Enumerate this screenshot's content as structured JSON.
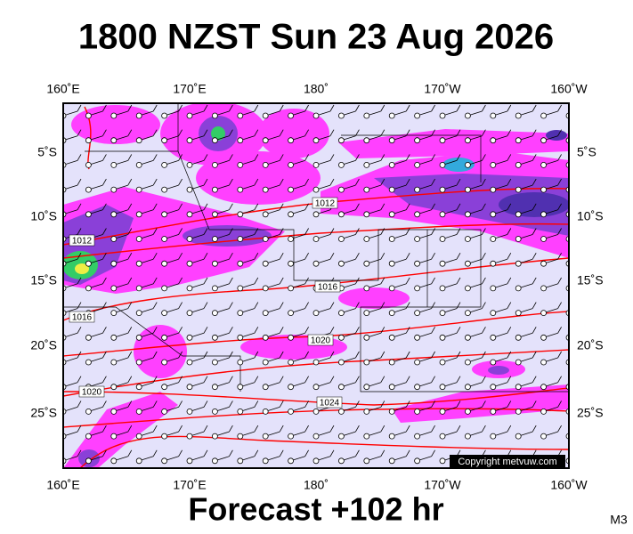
{
  "title": "1800 NZST Sun 23 Aug 2026",
  "lon_labels": [
    "160˚E",
    "170˚E",
    "180˚",
    "170˚W",
    "160˚W"
  ],
  "lat_labels": [
    "5˚S",
    "10˚S",
    "15˚S",
    "20˚S",
    "25˚S"
  ],
  "isobar_labels": [
    1012,
    1012,
    1016,
    1016,
    1020,
    1020,
    1024
  ],
  "copyright": "Copyright metvuw.com",
  "footer": "Forecast +102 hr",
  "model": "M3"
}
